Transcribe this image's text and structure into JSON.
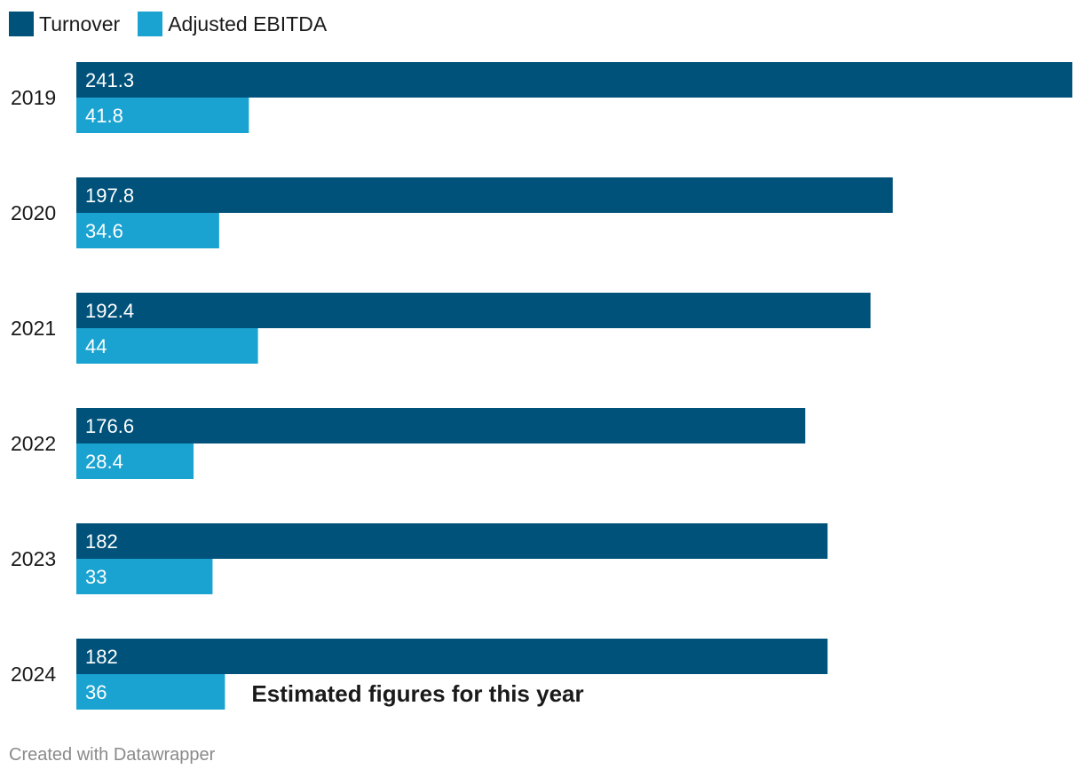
{
  "chart_data": {
    "type": "bar",
    "orientation": "horizontal",
    "categories": [
      "2019",
      "2020",
      "2021",
      "2022",
      "2023",
      "2024"
    ],
    "series": [
      {
        "name": "Turnover",
        "color": "#00527a",
        "values": [
          241.3,
          197.8,
          192.4,
          176.6,
          182,
          182
        ]
      },
      {
        "name": "Adjusted EBITDA",
        "color": "#1aa3d1",
        "values": [
          41.8,
          34.6,
          44,
          28.4,
          33,
          36
        ]
      }
    ],
    "xlim": [
      0,
      241.3
    ],
    "grid": false,
    "legend_position": "top-left",
    "annotation": {
      "category": "2024",
      "text": "Estimated figures for this year"
    }
  },
  "footer": {
    "credit": "Created with Datawrapper"
  }
}
